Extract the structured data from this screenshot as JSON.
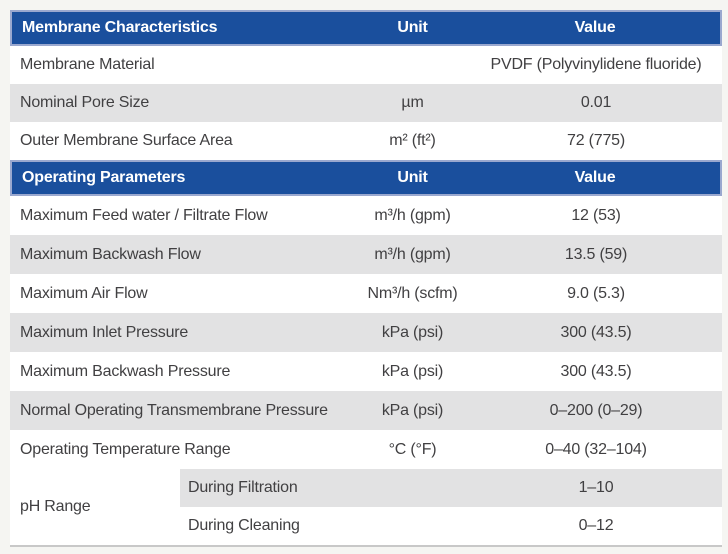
{
  "colors": {
    "header_bg": "#1A4F9D",
    "header_border": "#9AA8CF",
    "header_text": "#FFFFFF",
    "row_bg": "#FFFFFF",
    "row_shaded_bg": "#E2E2E3",
    "body_text": "#414042",
    "page_bg": "#F5F5F2",
    "bottom_rule": "#C8C8C8"
  },
  "sections": [
    {
      "header": {
        "title": "Membrane Characteristics",
        "unit": "Unit",
        "value": "Value"
      },
      "rows": [
        {
          "name": "Membrane Material",
          "unit": "",
          "value": "PVDF (Polyvinylidene fluoride)"
        },
        {
          "name": "Nominal Pore Size",
          "unit": "µm",
          "value": "0.01"
        },
        {
          "name": "Outer Membrane Surface Area",
          "unit": "m² (ft²)",
          "value": "72 (775)"
        }
      ]
    },
    {
      "header": {
        "title": "Operating Parameters",
        "unit": "Unit",
        "value": "Value"
      },
      "rows": [
        {
          "name": "Maximum Feed water / Filtrate Flow",
          "unit": "m³/h (gpm)",
          "value": "12 (53)"
        },
        {
          "name": "Maximum Backwash Flow",
          "unit": "m³/h (gpm)",
          "value": "13.5 (59)"
        },
        {
          "name": "Maximum Air Flow",
          "unit": "Nm³/h (scfm)",
          "value": "9.0 (5.3)"
        },
        {
          "name": "Maximum Inlet Pressure",
          "unit": "kPa (psi)",
          "value": "300 (43.5)"
        },
        {
          "name": "Maximum Backwash Pressure",
          "unit": "kPa (psi)",
          "value": "300 (43.5)"
        },
        {
          "name": "Normal Operating Transmembrane Pressure",
          "unit": "kPa (psi)",
          "value": "0–200 (0–29)"
        },
        {
          "name": "Operating Temperature Range",
          "unit": "°C (°F)",
          "value": "0–40 (32–104)"
        }
      ],
      "compound_row": {
        "name": "pH Range",
        "sub_rows": [
          {
            "label": "During Filtration",
            "value": "1–10"
          },
          {
            "label": "During Cleaning",
            "value": "0–12"
          }
        ]
      }
    }
  ]
}
